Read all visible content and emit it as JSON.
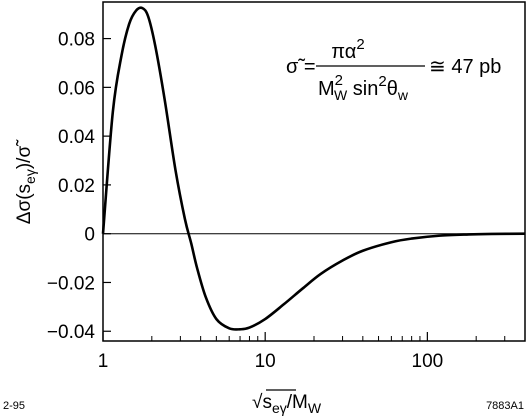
{
  "chart_data": {
    "type": "line",
    "xscale": "log",
    "xlim": [
      1,
      400
    ],
    "ylim": [
      -0.044,
      0.095
    ],
    "x_ticks": [
      1,
      10,
      100
    ],
    "x_tick_labels": [
      "1",
      "10",
      "100"
    ],
    "y_ticks": [
      0.08,
      0.06,
      0.04,
      0.02,
      0,
      -0.02,
      -0.04
    ],
    "y_tick_labels": [
      "0.08",
      "0.06",
      "0.04",
      "0.02",
      "0",
      "−0.02",
      "−0.04"
    ],
    "xlabel": {
      "prefix": "√",
      "base": "s",
      "sub": "eγ",
      "suffix": "/M",
      "suffix_sub": "W"
    },
    "ylabel": {
      "prefix": "Δσ(s",
      "sub": "eγ",
      "suffix": ")/σ̃"
    },
    "annotation": {
      "lhs": "σ̃ =",
      "numerator": "πα",
      "numerator_sup": "2",
      "denominator": "M",
      "denominator_sup": "2",
      "denominator_sub": "W",
      "denominator_mid": " sin",
      "denominator_mid_sup": "2",
      "denominator_theta": "θ",
      "denominator_theta_sub": "w",
      "rhs": "≅ 47 pb"
    },
    "reference_line_y": 0,
    "series": [
      {
        "x": [
          1.0,
          1.15,
          1.3,
          1.45,
          1.6,
          1.75,
          1.9,
          2.1,
          2.4,
          2.8,
          3.2,
          3.5,
          3.8,
          4.3,
          5.0,
          6.0,
          7.0,
          8.0,
          10.0,
          13.0,
          17.0,
          22.0,
          30.0,
          40.0,
          60.0,
          80.0,
          120.0,
          180.0,
          250.0,
          400.0
        ],
        "y": [
          0.0,
          0.05,
          0.073,
          0.086,
          0.0915,
          0.0925,
          0.089,
          0.077,
          0.055,
          0.026,
          0.006,
          -0.004,
          -0.014,
          -0.026,
          -0.035,
          -0.0388,
          -0.0392,
          -0.0385,
          -0.035,
          -0.029,
          -0.0225,
          -0.0165,
          -0.011,
          -0.007,
          -0.0035,
          -0.002,
          -0.0008,
          -0.0003,
          -0.0001,
          0.0
        ]
      }
    ]
  },
  "footer": {
    "left": "2-95",
    "right": "7883A1"
  }
}
